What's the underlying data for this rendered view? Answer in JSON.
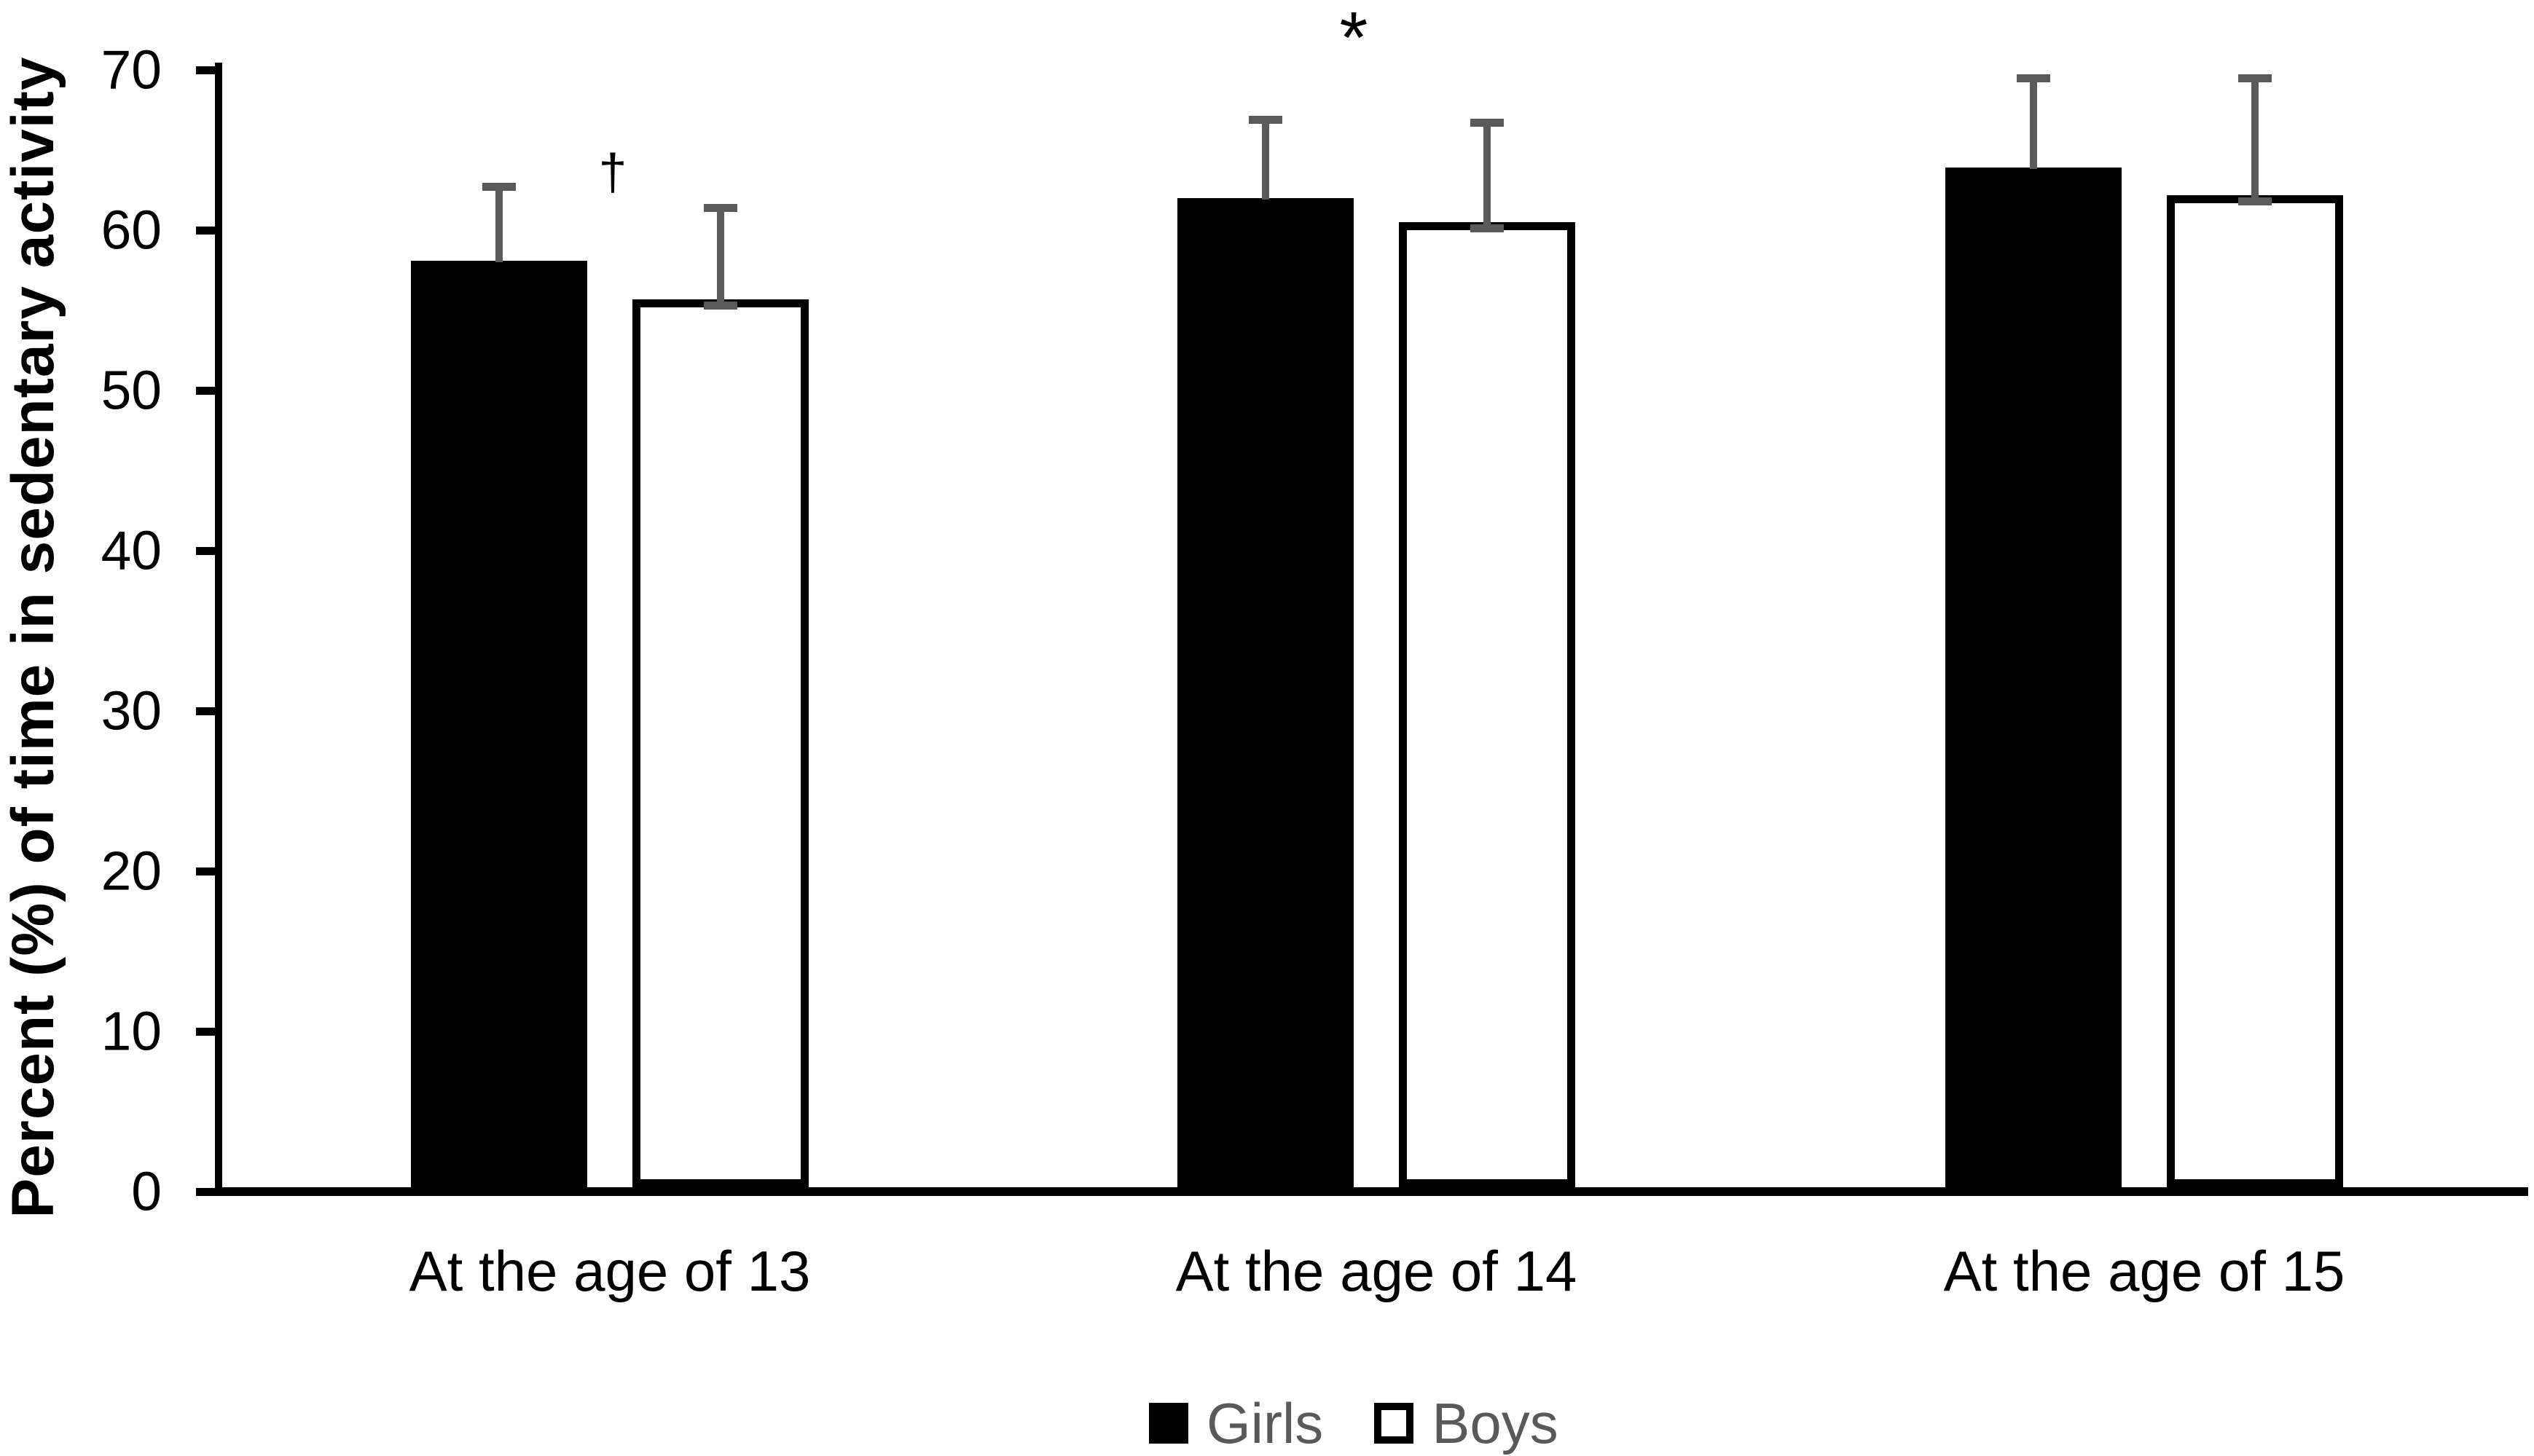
{
  "chart_data": {
    "type": "bar",
    "title": "",
    "xlabel": "",
    "ylabel": "Percent (%) of time in sedentary activity",
    "categories": [
      "At the age of 13",
      "At the age of 14",
      "At the age of 15"
    ],
    "series": [
      {
        "name": "Girls",
        "fill": "#000000",
        "border_color": "#000000",
        "values": [
          58.1,
          62.0,
          63.9
        ],
        "errors_plus": [
          4.6,
          4.9,
          5.6
        ],
        "bottom_error_cap_visible": false
      },
      {
        "name": "Boys",
        "fill": "#ffffff",
        "border_color": "#000000",
        "values": [
          55.7,
          60.5,
          62.2
        ],
        "errors_plus": [
          5.7,
          6.2,
          7.3
        ],
        "bottom_error_cap_visible": true
      }
    ],
    "yticks": [
      0,
      10,
      20,
      30,
      40,
      50,
      60,
      70
    ],
    "ylim": [
      0,
      70
    ],
    "grid": false,
    "legend_position": "bottom-center",
    "legend": [
      {
        "label": "Girls",
        "swatch_fill": "#000000",
        "swatch_border": "#000000"
      },
      {
        "label": "Boys",
        "swatch_fill": "#ffffff",
        "swatch_border": "#000000"
      }
    ],
    "annotations": [
      {
        "symbol": "†",
        "category_index": 0
      },
      {
        "symbol": "*",
        "category_index": 1
      }
    ],
    "colors": {
      "error_bar": "#5a5a5a",
      "axis": "#000000",
      "tick_text": "#000000",
      "category_text": "#000000",
      "legend_text": "#595959",
      "background": "#ffffff"
    }
  }
}
